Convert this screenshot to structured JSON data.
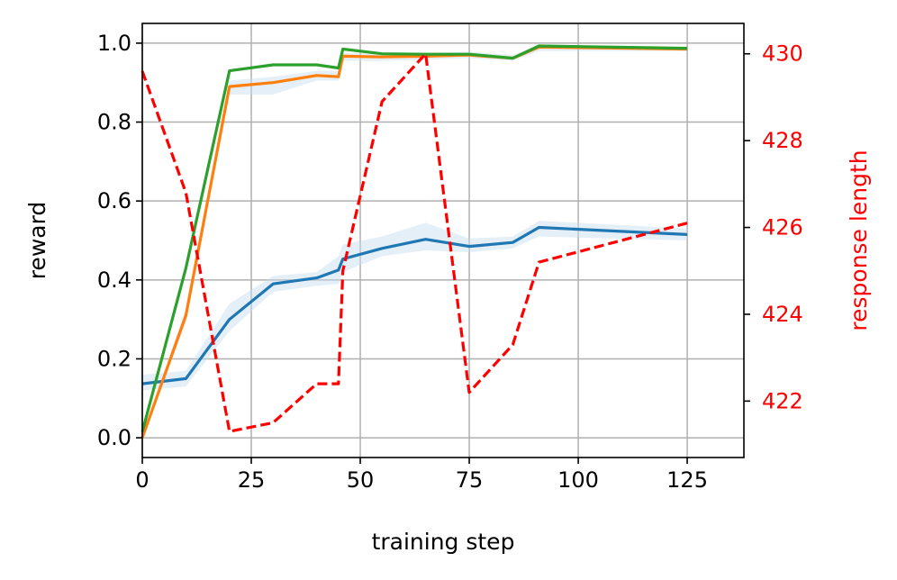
{
  "chart_data": {
    "type": "line",
    "xlabel": "training step",
    "ylabel": "reward",
    "y2label": "response length",
    "xlim": [
      0,
      138
    ],
    "ylim": [
      -0.05,
      1.05
    ],
    "y2lim": [
      420.7,
      430.7
    ],
    "xticks": [
      0,
      25,
      50,
      75,
      100,
      125
    ],
    "xtick_labels": [
      "0",
      "25",
      "50",
      "75",
      "100",
      "125"
    ],
    "yticks": [
      0.0,
      0.2,
      0.4,
      0.6,
      0.8,
      1.0
    ],
    "ytick_labels": [
      "0.0",
      "0.2",
      "0.4",
      "0.6",
      "0.8",
      "1.0"
    ],
    "y2ticks": [
      422,
      424,
      426,
      428,
      430
    ],
    "y2tick_labels": [
      "422",
      "424",
      "426",
      "428",
      "430"
    ],
    "grid": true,
    "colors": {
      "series_1": "#1f77b4",
      "series_2": "#ff7f0e",
      "series_3": "#2ca02c",
      "response_length": "#ff0000",
      "band": "#c6dbef",
      "grid": "#b0b0b0",
      "axis": "#000000"
    },
    "series": [
      {
        "axis": "left",
        "style": "solid",
        "color": "#1f77b4",
        "x": [
          0,
          10,
          20,
          30,
          40,
          45,
          46,
          55,
          65,
          75,
          85,
          91,
          125
        ],
        "y": [
          0.137,
          0.15,
          0.3,
          0.39,
          0.405,
          0.425,
          0.453,
          0.48,
          0.503,
          0.485,
          0.495,
          0.533,
          0.515
        ],
        "band_low": [
          0.12,
          0.13,
          0.27,
          0.37,
          0.385,
          0.39,
          0.42,
          0.46,
          0.475,
          0.47,
          0.48,
          0.51,
          0.5
        ],
        "band_high": [
          0.16,
          0.17,
          0.34,
          0.41,
          0.42,
          0.46,
          0.49,
          0.51,
          0.545,
          0.505,
          0.51,
          0.55,
          0.53
        ]
      },
      {
        "axis": "left",
        "style": "solid",
        "color": "#ff7f0e",
        "x": [
          0,
          10,
          20,
          30,
          40,
          45,
          46,
          55,
          65,
          75,
          85,
          91,
          125
        ],
        "y": [
          0.0,
          0.31,
          0.89,
          0.9,
          0.918,
          0.915,
          0.967,
          0.965,
          0.967,
          0.97,
          0.962,
          0.99,
          0.985
        ],
        "band_low": [
          0.0,
          0.29,
          0.87,
          0.87,
          0.905,
          0.905,
          0.955,
          0.955,
          0.958,
          0.962,
          0.955,
          0.98,
          0.98
        ],
        "band_high": [
          0.0,
          0.33,
          0.905,
          0.915,
          0.93,
          0.93,
          0.975,
          0.975,
          0.975,
          0.978,
          0.97,
          0.995,
          0.99
        ]
      },
      {
        "axis": "left",
        "style": "solid",
        "color": "#2ca02c",
        "x": [
          0,
          10,
          20,
          30,
          40,
          45,
          46,
          55,
          65,
          75,
          85,
          91,
          125
        ],
        "y": [
          0.015,
          0.43,
          0.93,
          0.945,
          0.945,
          0.937,
          0.985,
          0.973,
          0.972,
          0.972,
          0.962,
          0.993,
          0.987
        ]
      },
      {
        "axis": "right",
        "style": "dashed",
        "color": "#ff0000",
        "x": [
          0,
          10,
          20,
          30,
          40,
          45,
          46,
          55,
          65,
          75,
          85,
          91,
          125
        ],
        "y": [
          429.6,
          426.8,
          421.3,
          421.5,
          422.4,
          422.4,
          425.0,
          428.9,
          430.0,
          422.2,
          423.3,
          425.2,
          426.1
        ]
      }
    ]
  }
}
